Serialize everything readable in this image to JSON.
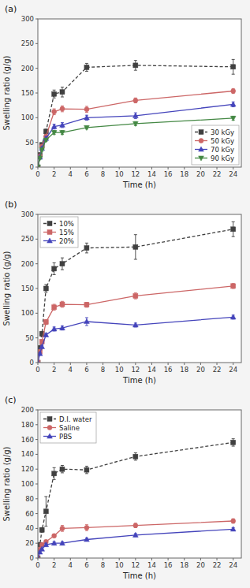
{
  "chart_data": [
    {
      "type": "line",
      "title": "(a)",
      "x_label": "Time (h)",
      "y_label": "Swelling ratio (g/g)",
      "xlim": [
        0,
        25
      ],
      "ylim": [
        0,
        300
      ],
      "xticks": [
        0,
        2,
        4,
        6,
        8,
        10,
        12,
        14,
        16,
        18,
        20,
        22,
        24
      ],
      "yticks": [
        0,
        50,
        100,
        150,
        200,
        250,
        300
      ],
      "grid": false,
      "legend": "lower right",
      "x": [
        0,
        0.25,
        0.5,
        1,
        2,
        3,
        6,
        12,
        24
      ],
      "series": [
        {
          "name": "30 kGy",
          "color": "#404040",
          "marker": "square",
          "line_style": "dashed",
          "values": [
            0,
            25,
            45,
            72,
            148,
            152,
            202,
            206,
            203
          ],
          "errors": [
            0,
            3,
            4,
            5,
            8,
            10,
            8,
            10,
            15
          ]
        },
        {
          "name": "50 kGy",
          "color": "#cc6666",
          "marker": "circle",
          "line_style": "solid",
          "values": [
            0,
            22,
            42,
            62,
            112,
            118,
            117,
            135,
            154
          ],
          "errors": [
            0,
            2,
            3,
            4,
            6,
            6,
            6,
            5,
            5
          ]
        },
        {
          "name": "70 kGy",
          "color": "#4444bb",
          "marker": "triangle-up",
          "line_style": "solid",
          "values": [
            0,
            20,
            38,
            58,
            82,
            85,
            100,
            104,
            127
          ],
          "errors": [
            0,
            2,
            3,
            4,
            5,
            5,
            5,
            6,
            5
          ]
        },
        {
          "name": "90 kGy",
          "color": "#448844",
          "marker": "triangle-down",
          "line_style": "solid",
          "values": [
            0,
            18,
            35,
            55,
            70,
            70,
            80,
            88,
            99
          ],
          "errors": [
            0,
            2,
            3,
            3,
            4,
            4,
            3,
            4,
            4
          ]
        }
      ]
    },
    {
      "type": "line",
      "title": "(b)",
      "x_label": "Time (h)",
      "y_label": "Swelling ratio (g/g)",
      "xlim": [
        0,
        25
      ],
      "ylim": [
        0,
        300
      ],
      "xticks": [
        0,
        2,
        4,
        6,
        8,
        10,
        12,
        14,
        16,
        18,
        20,
        22,
        24
      ],
      "yticks": [
        0,
        50,
        100,
        150,
        200,
        250,
        300
      ],
      "grid": false,
      "legend": "upper left",
      "x": [
        0,
        0.25,
        0.5,
        1,
        2,
        3,
        6,
        12,
        24
      ],
      "series": [
        {
          "name": "10%",
          "color": "#404040",
          "marker": "square",
          "line_style": "dashed",
          "values": [
            0,
            30,
            58,
            150,
            190,
            200,
            232,
            234,
            270
          ],
          "errors": [
            0,
            3,
            5,
            8,
            12,
            12,
            10,
            25,
            15
          ]
        },
        {
          "name": "15%",
          "color": "#cc6666",
          "marker": "square",
          "line_style": "solid",
          "values": [
            0,
            22,
            42,
            82,
            112,
            118,
            117,
            135,
            155
          ],
          "errors": [
            0,
            2,
            3,
            5,
            6,
            6,
            5,
            6,
            5
          ]
        },
        {
          "name": "20%",
          "color": "#4444bb",
          "marker": "triangle-up",
          "line_style": "solid",
          "values": [
            0,
            18,
            32,
            56,
            68,
            70,
            83,
            76,
            92
          ],
          "errors": [
            0,
            2,
            2,
            3,
            4,
            4,
            8,
            4,
            4
          ]
        }
      ]
    },
    {
      "type": "line",
      "title": "(c)",
      "x_label": "Time (h)",
      "y_label": "Swelling ratio (g/g)",
      "xlim": [
        0,
        25
      ],
      "ylim": [
        0,
        200
      ],
      "xticks": [
        0,
        2,
        4,
        6,
        8,
        10,
        12,
        14,
        16,
        18,
        20,
        22,
        24
      ],
      "yticks": [
        0,
        20,
        40,
        60,
        80,
        100,
        120,
        140,
        160,
        180,
        200
      ],
      "grid": false,
      "legend": "upper left",
      "x": [
        0,
        0.25,
        0.5,
        1,
        2,
        3,
        6,
        12,
        24
      ],
      "series": [
        {
          "name": "D.I. water",
          "color": "#404040",
          "marker": "square",
          "line_style": "dashed",
          "values": [
            0,
            18,
            38,
            63,
            114,
            120,
            119,
            137,
            156
          ],
          "errors": [
            0,
            2,
            3,
            20,
            8,
            5,
            5,
            5,
            5
          ]
        },
        {
          "name": "Saline",
          "color": "#cc6666",
          "marker": "circle",
          "line_style": "solid",
          "values": [
            0,
            12,
            18,
            22,
            30,
            40,
            41,
            44,
            50
          ],
          "errors": [
            0,
            1,
            1,
            2,
            2,
            4,
            4,
            3,
            3
          ]
        },
        {
          "name": "PBS",
          "color": "#4444bb",
          "marker": "triangle-up",
          "line_style": "solid",
          "values": [
            0,
            8,
            12,
            18,
            20,
            20,
            25,
            31,
            39
          ],
          "errors": [
            0,
            1,
            1,
            2,
            2,
            2,
            2,
            2,
            2
          ]
        }
      ]
    }
  ]
}
